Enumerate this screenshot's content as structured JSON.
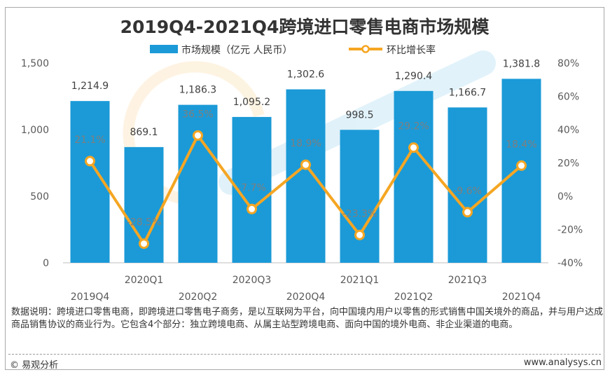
{
  "chart_data": {
    "type": "bar+line",
    "title": "2019Q4-2021Q4跨境进口零售电商市场规模",
    "categories": [
      "2019Q4",
      "2020Q1",
      "2020Q2",
      "2020Q3",
      "2020Q4",
      "2021Q1",
      "2021Q2",
      "2021Q3",
      "2021Q4"
    ],
    "series": [
      {
        "name": "市场规模（亿元 人民币）",
        "type": "bar",
        "axis": "left",
        "color": "#1b9ad7",
        "values": [
          1214.9,
          869.1,
          1186.3,
          1095.2,
          1302.6,
          998.5,
          1290.4,
          1166.7,
          1381.8
        ],
        "labels": [
          "1,214.9",
          "869.1",
          "1,186.3",
          "1,095.2",
          "1,302.6",
          "998.5",
          "1,290.4",
          "1,166.7",
          "1,381.8"
        ]
      },
      {
        "name": "环比增长率",
        "type": "line",
        "axis": "right",
        "color": "#f5a623",
        "values": [
          21.1,
          -28.5,
          36.5,
          -7.7,
          18.9,
          -23.3,
          29.2,
          -9.6,
          18.4
        ],
        "labels": [
          "21.1%",
          "-28.5%",
          "36.5%",
          "-7.7%",
          "18.9%",
          "-23.3%",
          "29.2%",
          "-9.6%",
          "18.4%"
        ]
      }
    ],
    "y_left": {
      "min": 0,
      "max": 1500,
      "ticks": [
        0,
        500,
        1000,
        1500
      ],
      "tick_labels": [
        "0",
        "500",
        "1,000",
        "1,500"
      ]
    },
    "y_right": {
      "min": -40,
      "max": 80,
      "ticks": [
        -40,
        -20,
        0,
        20,
        40,
        60,
        80
      ],
      "tick_labels": [
        "-40%",
        "-20%",
        "0%",
        "20%",
        "40%",
        "60%",
        "80%"
      ]
    },
    "grid": false,
    "legend": "top-center"
  },
  "note": "数据说明：跨境进口零售电商，即跨境进口零售电子商务，是以互联网为平台，向中国境内用户以零售的形式销售中国关境外的商品，并与用户达成商品销售协议的商业行为。它包含4个部分：独立跨境电商、从属主站型跨境电商、面向中国的境外电商、非企业渠道的电商。",
  "footer": {
    "copyright": "© 易观分析",
    "website": "www.analysys.cn"
  }
}
